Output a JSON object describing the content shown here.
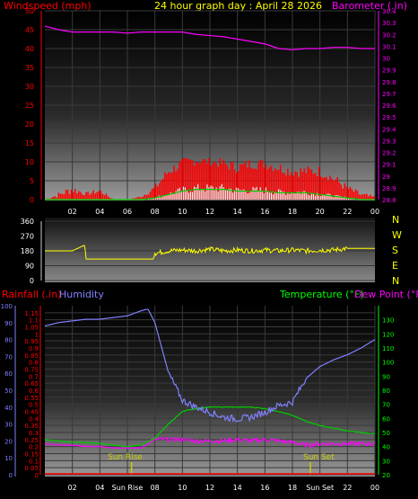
{
  "header": {
    "windspeed_label": "Windspeed (mph)",
    "title": "24 hour graph day : April 28 2026",
    "barometer_label": "Barometer (.in)"
  },
  "middle": {
    "compass_labels": [
      "N",
      "W",
      "S",
      "E",
      "N"
    ]
  },
  "bottom": {
    "rainfall_label": "Rainfall (.in)",
    "humidity_label": "Humidity",
    "temperature_label": "Temperature (°F)",
    "dewpoint_label": "Dew Point (°F)",
    "sunrise_label": "Sun Rise",
    "sunset_label": "Sun Set"
  },
  "colors": {
    "windspeed": "#ff0000",
    "gust": "#ffffff",
    "average_wind": "#00cc00",
    "barometer": "#ff00ff",
    "direction": "#ffff00",
    "humidity": "#8080ff",
    "temperature": "#00cc00",
    "dewpoint": "#ff00ff",
    "rainfall": "#ff0000",
    "sun": "#cccc00",
    "axis_text": "#ffffff",
    "humidity_axis": "#8080ff",
    "temperature_axis": "#00ff00",
    "barometer_axis": "#ff00ff",
    "windspeed_axis": "#ff0000"
  },
  "chart_data": [
    {
      "type": "line",
      "title": "24 hour graph day : April 28 2026",
      "x_ticks": [
        "02",
        "04",
        "06",
        "08",
        "10",
        "12",
        "14",
        "16",
        "18",
        "20",
        "22",
        "00"
      ],
      "left_axis": {
        "label": "Windspeed (mph)",
        "ylim": [
          0,
          50
        ],
        "ticks": [
          0,
          5,
          10,
          15,
          20,
          25,
          30,
          35,
          40,
          45,
          50
        ]
      },
      "right_axis": {
        "label": "Barometer (.in)",
        "ylim": [
          28.8,
          30.4
        ],
        "ticks": [
          "28.8",
          "28.9",
          "29",
          "29.1",
          "29.2",
          "29.3",
          "29.4",
          "29.5",
          "29.6",
          "29.7",
          "29.8",
          "29.9",
          "30",
          "30.1",
          "30.2",
          "30.3",
          "30.4"
        ]
      },
      "series": [
        {
          "name": "Barometer (.in)",
          "axis": "right",
          "x": [
            0,
            1,
            2,
            3,
            4,
            5,
            6,
            7,
            8,
            9,
            10,
            11,
            12,
            13,
            14,
            15,
            16,
            17,
            18,
            19,
            20,
            21,
            22,
            23,
            24
          ],
          "values": [
            30.27,
            30.24,
            30.22,
            30.22,
            30.22,
            30.22,
            30.21,
            30.22,
            30.22,
            30.22,
            30.22,
            30.2,
            30.19,
            30.18,
            30.16,
            30.14,
            30.12,
            30.08,
            30.07,
            30.08,
            30.08,
            30.09,
            30.09,
            30.08,
            30.08
          ]
        },
        {
          "name": "Windspeed (mph)",
          "axis": "left",
          "x": [
            0,
            1,
            2,
            3,
            4,
            5,
            6,
            7,
            8,
            9,
            10,
            11,
            12,
            13,
            14,
            15,
            16,
            17,
            18,
            19,
            20,
            21,
            22,
            23,
            24
          ],
          "values": [
            0,
            0.5,
            1.5,
            1,
            1.5,
            0,
            0,
            0.5,
            2,
            6,
            8,
            9,
            9,
            8,
            7,
            8,
            8,
            7,
            6,
            6,
            6,
            4,
            2,
            0.5,
            0
          ],
          "peaks": [
            0,
            2,
            4,
            2,
            3,
            0,
            0,
            1,
            4,
            9,
            11,
            12,
            11,
            11,
            10,
            11,
            11,
            10,
            9,
            9,
            9,
            7,
            4,
            2,
            1
          ]
        },
        {
          "name": "Gust",
          "axis": "left",
          "x": [
            0,
            1,
            2,
            3,
            4,
            5,
            6,
            7,
            8,
            9,
            10,
            11,
            12,
            13,
            14,
            15,
            16,
            17,
            18,
            19,
            20,
            21,
            22,
            23,
            24
          ],
          "values": [
            0,
            0,
            0,
            0,
            0,
            0,
            0,
            0,
            0.5,
            1.5,
            2.5,
            3,
            3,
            3,
            2.5,
            2.5,
            2.5,
            2,
            2,
            2,
            1.5,
            1,
            0.5,
            0,
            0
          ]
        }
      ]
    },
    {
      "type": "line",
      "title": "",
      "x_ticks": [],
      "left_axis": {
        "label": "",
        "ylim": [
          0,
          360
        ],
        "ticks": [
          0,
          90,
          180,
          270,
          360
        ]
      },
      "series": [
        {
          "name": "Wind Direction",
          "x": [
            0,
            1,
            2,
            2.9,
            3,
            4,
            5,
            6,
            7,
            7.9,
            8,
            9,
            10,
            11,
            12,
            13,
            14,
            15,
            16,
            17,
            18,
            19,
            20,
            21,
            22,
            23,
            24
          ],
          "values": [
            180,
            180,
            180,
            215,
            130,
            130,
            130,
            130,
            130,
            130,
            165,
            180,
            185,
            180,
            190,
            180,
            185,
            180,
            185,
            180,
            185,
            180,
            185,
            185,
            195,
            195,
            195
          ]
        }
      ]
    },
    {
      "type": "line",
      "title": "",
      "x_ticks": [
        "02",
        "04",
        "Sun Rise",
        "08",
        "10",
        "12",
        "14",
        "16",
        "18",
        "Sun Set",
        "22",
        "00"
      ],
      "left_axis_humidity": {
        "label": "Humidity",
        "ylim": [
          0,
          100
        ],
        "ticks": [
          0,
          10,
          20,
          30,
          40,
          50,
          60,
          70,
          80,
          90,
          100
        ]
      },
      "left_axis_rain": {
        "label": "Rainfall (.in)",
        "ylim": [
          0,
          1.2
        ],
        "ticks": [
          "0",
          "0.05",
          "0.1",
          "0.15",
          "0.2",
          "0.25",
          "0.3",
          "0.35",
          "0.4",
          "0.45",
          "0.5",
          "0.55",
          "0.6",
          "0.65",
          "0.7",
          "0.75",
          "0.8",
          "0.85",
          "0.9",
          "0.95",
          "1",
          "1.05",
          "1.1",
          "1.15"
        ]
      },
      "right_axis": {
        "label": "Temperature (°F)",
        "ylim": [
          20,
          140
        ],
        "ticks": [
          20,
          30,
          40,
          50,
          60,
          70,
          80,
          90,
          100,
          110,
          120,
          130
        ]
      },
      "sunrise_hour": 6.3,
      "sunset_hour": 19.3,
      "series": [
        {
          "name": "Humidity",
          "axis": "left_humidity",
          "x": [
            0,
            1,
            2,
            3,
            4,
            5,
            6,
            7,
            7.5,
            8,
            9,
            10,
            11,
            12,
            13,
            14,
            15,
            16,
            17,
            18,
            19,
            20,
            21,
            22,
            23,
            24
          ],
          "values": [
            88,
            90,
            91,
            92,
            92,
            93,
            94,
            97,
            98,
            90,
            60,
            44,
            40,
            37,
            34,
            33,
            34,
            37,
            41,
            43,
            57,
            64,
            68,
            71,
            75,
            80
          ]
        },
        {
          "name": "Temperature (°F)",
          "axis": "right",
          "x": [
            0,
            1,
            2,
            3,
            4,
            5,
            6,
            7,
            8,
            9,
            10,
            11,
            12,
            13,
            14,
            15,
            16,
            17,
            18,
            19,
            20,
            21,
            22,
            23,
            24
          ],
          "values": [
            45,
            44,
            43,
            43,
            42,
            41,
            40,
            41,
            46,
            56,
            65,
            67,
            68,
            68,
            68,
            68,
            67,
            65,
            62,
            58,
            55,
            53,
            51,
            50,
            49
          ]
        },
        {
          "name": "Dew Point (°F)",
          "axis": "right",
          "x": [
            0,
            1,
            2,
            3,
            4,
            5,
            6,
            7,
            8,
            9,
            10,
            11,
            12,
            13,
            14,
            15,
            16,
            17,
            18,
            19,
            20,
            21,
            22,
            23,
            24
          ],
          "values": [
            42,
            41,
            41,
            40,
            40,
            39,
            39,
            39,
            45,
            45,
            45,
            44,
            44,
            44,
            45,
            44,
            45,
            44,
            43,
            41,
            42,
            42,
            42,
            42,
            42
          ]
        },
        {
          "name": "Rainfall (.in)",
          "axis": "left_rain",
          "x": [
            0,
            24
          ],
          "values": [
            0,
            0
          ]
        }
      ]
    }
  ]
}
